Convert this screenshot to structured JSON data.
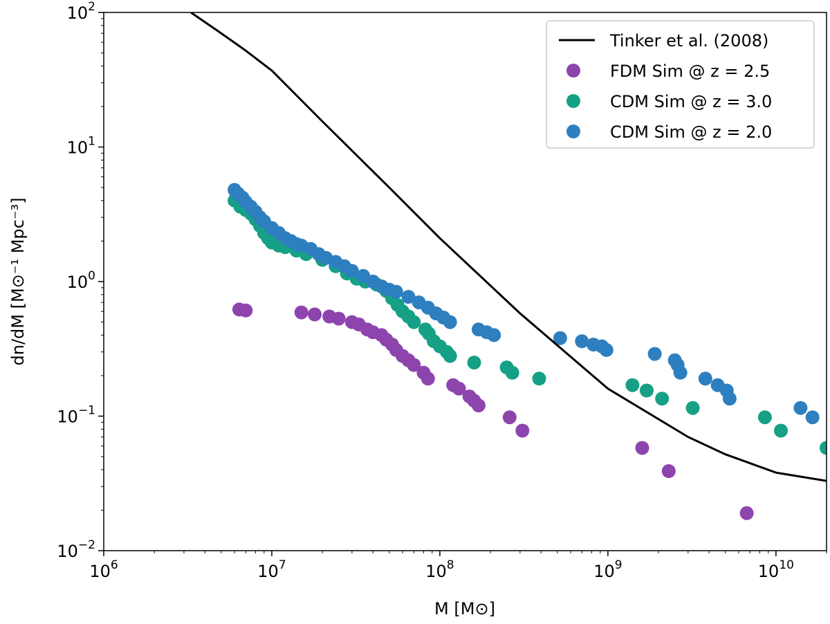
{
  "chart_data": {
    "type": "scatter",
    "xscale": "log",
    "yscale": "log",
    "xlim": [
      1000000,
      20000000000
    ],
    "ylim": [
      0.01,
      100
    ],
    "xlabel": "M [M⊙]",
    "ylabel": "dn/dM [M⊙⁻¹ Mpc⁻³]",
    "x_ticks": [
      {
        "value": 1000000,
        "base": "10",
        "exp": "6"
      },
      {
        "value": 10000000,
        "base": "10",
        "exp": "7"
      },
      {
        "value": 100000000,
        "base": "10",
        "exp": "8"
      },
      {
        "value": 1000000000,
        "base": "10",
        "exp": "9"
      },
      {
        "value": 10000000000,
        "base": "10",
        "exp": "10"
      }
    ],
    "y_ticks": [
      {
        "value": 0.01,
        "base": "10",
        "exp": "−2"
      },
      {
        "value": 0.1,
        "base": "10",
        "exp": "−1"
      },
      {
        "value": 1,
        "base": "10",
        "exp": "0"
      },
      {
        "value": 10,
        "base": "10",
        "exp": "1"
      },
      {
        "value": 100,
        "base": "10",
        "exp": "2"
      }
    ],
    "legend_position": "top-right",
    "series": [
      {
        "name": "Tinker et al. (2008)",
        "kind": "line",
        "color": "#000000",
        "points": [
          [
            3300000,
            100
          ],
          [
            5000000,
            70
          ],
          [
            7000000,
            52
          ],
          [
            10000000,
            37
          ],
          [
            20000000,
            15.5
          ],
          [
            50000000,
            5.0
          ],
          [
            100000000,
            2.1
          ],
          [
            300000000,
            0.58
          ],
          [
            1000000000,
            0.16
          ],
          [
            3000000000,
            0.07
          ],
          [
            5000000000,
            0.052
          ],
          [
            10000000000,
            0.038
          ],
          [
            20000000000,
            0.033
          ]
        ]
      },
      {
        "name": "FDM Sim @ z = 2.5",
        "kind": "scatter",
        "color": "#8e44ad",
        "points": [
          [
            6400000,
            0.62
          ],
          [
            7000000,
            0.61
          ],
          [
            15000000,
            0.59
          ],
          [
            18000000,
            0.57
          ],
          [
            22000000,
            0.55
          ],
          [
            25000000,
            0.53
          ],
          [
            30000000,
            0.5
          ],
          [
            33000000,
            0.48
          ],
          [
            37000000,
            0.44
          ],
          [
            40000000,
            0.42
          ],
          [
            45000000,
            0.4
          ],
          [
            48000000,
            0.37
          ],
          [
            52000000,
            0.34
          ],
          [
            55000000,
            0.31
          ],
          [
            60000000,
            0.28
          ],
          [
            65000000,
            0.26
          ],
          [
            70000000,
            0.24
          ],
          [
            80000000,
            0.21
          ],
          [
            85000000,
            0.19
          ],
          [
            120000000,
            0.17
          ],
          [
            130000000,
            0.16
          ],
          [
            150000000,
            0.14
          ],
          [
            160000000,
            0.13
          ],
          [
            170000000,
            0.12
          ],
          [
            260000000,
            0.098
          ],
          [
            310000000,
            0.078
          ],
          [
            1600000000,
            0.058
          ],
          [
            2300000000,
            0.039
          ],
          [
            6700000000,
            0.019
          ]
        ]
      },
      {
        "name": "CDM Sim @ z = 3.0",
        "kind": "scatter",
        "color": "#16a085",
        "points": [
          [
            6000000,
            4.0
          ],
          [
            6500000,
            3.6
          ],
          [
            7000000,
            3.4
          ],
          [
            7500000,
            3.2
          ],
          [
            8000000,
            2.9
          ],
          [
            8500000,
            2.6
          ],
          [
            9000000,
            2.3
          ],
          [
            9500000,
            2.1
          ],
          [
            10000000,
            1.95
          ],
          [
            11000000,
            1.85
          ],
          [
            12000000,
            1.8
          ],
          [
            14000000,
            1.7
          ],
          [
            16000000,
            1.6
          ],
          [
            20000000,
            1.45
          ],
          [
            24000000,
            1.3
          ],
          [
            28000000,
            1.15
          ],
          [
            32000000,
            1.05
          ],
          [
            36000000,
            1.0
          ],
          [
            42000000,
            0.95
          ],
          [
            48000000,
            0.85
          ],
          [
            52000000,
            0.75
          ],
          [
            56000000,
            0.67
          ],
          [
            60000000,
            0.6
          ],
          [
            65000000,
            0.55
          ],
          [
            70000000,
            0.5
          ],
          [
            82000000,
            0.44
          ],
          [
            86000000,
            0.41
          ],
          [
            92000000,
            0.36
          ],
          [
            100000000,
            0.33
          ],
          [
            110000000,
            0.3
          ],
          [
            115000000,
            0.28
          ],
          [
            160000000,
            0.25
          ],
          [
            250000000,
            0.23
          ],
          [
            270000000,
            0.21
          ],
          [
            390000000,
            0.19
          ],
          [
            1400000000,
            0.17
          ],
          [
            1700000000,
            0.155
          ],
          [
            2100000000,
            0.135
          ],
          [
            3200000000,
            0.115
          ],
          [
            8600000000,
            0.098
          ],
          [
            10700000000,
            0.078
          ],
          [
            20000000000,
            0.058
          ]
        ]
      },
      {
        "name": "CDM Sim @ z = 2.0",
        "kind": "scatter",
        "color": "#2e7fbf",
        "points": [
          [
            6000000,
            4.8
          ],
          [
            6300000,
            4.5
          ],
          [
            6700000,
            4.2
          ],
          [
            7000000,
            3.9
          ],
          [
            7500000,
            3.6
          ],
          [
            8000000,
            3.3
          ],
          [
            8500000,
            3.0
          ],
          [
            9000000,
            2.8
          ],
          [
            10000000,
            2.5
          ],
          [
            11000000,
            2.3
          ],
          [
            12000000,
            2.1
          ],
          [
            13000000,
            2.0
          ],
          [
            14000000,
            1.9
          ],
          [
            15000000,
            1.85
          ],
          [
            17000000,
            1.75
          ],
          [
            19000000,
            1.6
          ],
          [
            21000000,
            1.5
          ],
          [
            24000000,
            1.4
          ],
          [
            27000000,
            1.3
          ],
          [
            30000000,
            1.2
          ],
          [
            35000000,
            1.1
          ],
          [
            40000000,
            1.0
          ],
          [
            45000000,
            0.92
          ],
          [
            50000000,
            0.87
          ],
          [
            55000000,
            0.84
          ],
          [
            65000000,
            0.77
          ],
          [
            75000000,
            0.7
          ],
          [
            85000000,
            0.64
          ],
          [
            95000000,
            0.58
          ],
          [
            105000000,
            0.54
          ],
          [
            115000000,
            0.5
          ],
          [
            170000000,
            0.44
          ],
          [
            190000000,
            0.42
          ],
          [
            210000000,
            0.4
          ],
          [
            520000000,
            0.38
          ],
          [
            700000000,
            0.36
          ],
          [
            820000000,
            0.34
          ],
          [
            920000000,
            0.33
          ],
          [
            980000000,
            0.31
          ],
          [
            1900000000,
            0.29
          ],
          [
            2500000000,
            0.26
          ],
          [
            2600000000,
            0.24
          ],
          [
            2700000000,
            0.21
          ],
          [
            3800000000,
            0.19
          ],
          [
            4500000000,
            0.17
          ],
          [
            5100000000,
            0.155
          ],
          [
            5300000000,
            0.135
          ],
          [
            14000000000,
            0.115
          ],
          [
            16500000000,
            0.098
          ]
        ]
      }
    ]
  }
}
